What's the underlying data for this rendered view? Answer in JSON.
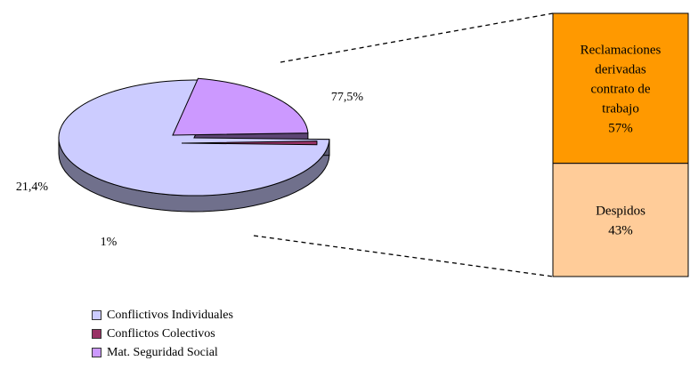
{
  "chart_data": {
    "type": "pie",
    "title": "",
    "pie": {
      "slices": [
        {
          "label": "Conflictivos Individuales",
          "value": 77.5,
          "display": "77,5%",
          "color": "#ccccff"
        },
        {
          "label": "Conflictos Colectivos",
          "value": 1,
          "display": "1%",
          "color": "#993366"
        },
        {
          "label": "Mat. Seguridad Social",
          "value": 21.4,
          "display": "21,4%",
          "color": "#cc99ff"
        }
      ]
    },
    "breakdown": {
      "of": "Conflictivos Individuales",
      "type": "stacked-bar",
      "segments": [
        {
          "label": [
            "Reclamaciones",
            "derivadas",
            "contrato de",
            "trabajo"
          ],
          "value": 57,
          "display": "57%",
          "color": "#ff9900"
        },
        {
          "label": [
            "Despidos"
          ],
          "value": 43,
          "display": "43%",
          "color": "#ffcc99"
        }
      ]
    },
    "legend": {
      "position": "bottom-left",
      "items": [
        {
          "label": "Conflictivos Individuales",
          "color": "#ccccff"
        },
        {
          "label": "Conflictos Colectivos",
          "color": "#993366"
        },
        {
          "label": "Mat. Seguridad Social",
          "color": "#cc99ff"
        }
      ]
    }
  }
}
